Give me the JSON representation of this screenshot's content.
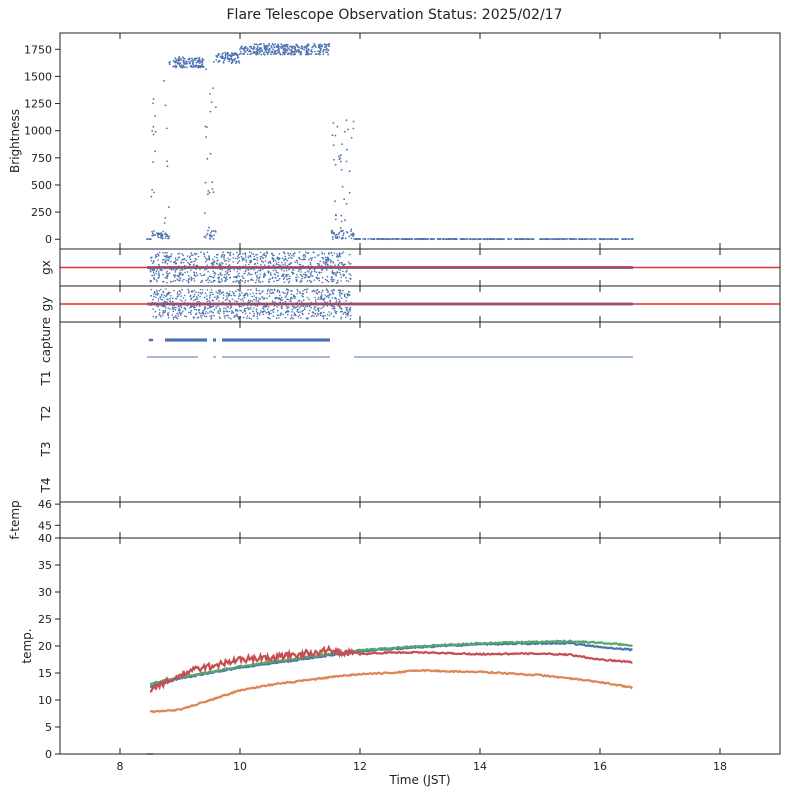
{
  "title": "Flare Telescope Observation Status: 2025/02/17",
  "colors": {
    "blue": "#4c72b0",
    "orange": "#dd8452",
    "green": "#55a868",
    "red": "#c44e52",
    "line_red": "#e03030"
  },
  "chart_data": [
    {
      "panel": "brightness",
      "type": "scatter",
      "ylabel": "Brightness",
      "ylim": [
        -90,
        1900
      ],
      "yticks": [
        0,
        250,
        500,
        750,
        1000,
        1250,
        1500,
        1750
      ],
      "segments": [
        {
          "x0": 8.45,
          "x1": 8.52,
          "y": 0
        },
        {
          "x0": 8.52,
          "x1": 8.62,
          "ymin": 0,
          "ymax": 1300
        },
        {
          "x0": 8.62,
          "x1": 8.72,
          "ymin": 0,
          "ymax": 60
        },
        {
          "x0": 8.72,
          "x1": 8.82,
          "ymin": 0,
          "ymax": 1600
        },
        {
          "x0": 8.82,
          "x1": 9.4,
          "ymin": 1580,
          "ymax": 1680
        },
        {
          "x0": 9.4,
          "x1": 9.6,
          "ymin": 0,
          "ymax": 1650
        },
        {
          "x0": 9.6,
          "x1": 10.0,
          "ymin": 1620,
          "ymax": 1720
        },
        {
          "x0": 10.0,
          "x1": 11.5,
          "ymin": 1700,
          "ymax": 1800
        },
        {
          "x0": 11.5,
          "x1": 11.9,
          "ymin": 0,
          "ymax": 1100
        },
        {
          "x0": 11.9,
          "x1": 16.55,
          "y": 0
        }
      ]
    },
    {
      "panel": "gx",
      "type": "scatter",
      "ylabel": "gx",
      "x_range": [
        8.45,
        16.55
      ],
      "noisy_range": [
        8.5,
        11.85
      ],
      "red_line": true
    },
    {
      "panel": "gy",
      "type": "scatter",
      "ylabel": "gy",
      "x_range": [
        8.45,
        16.55
      ],
      "noisy_range": [
        8.5,
        11.85
      ],
      "red_line": true
    },
    {
      "panel": "status",
      "type": "scatter",
      "row_labels": [
        "capture",
        "T1",
        "T2",
        "T3",
        "T4"
      ],
      "capture_points": [
        8.5,
        8.53
      ],
      "capture_bars": [
        [
          8.75,
          9.45
        ],
        [
          9.55,
          9.6
        ],
        [
          9.7,
          11.5
        ]
      ],
      "t1_line": [
        8.45,
        16.55
      ],
      "t1_gaps": [
        [
          9.3,
          9.55
        ],
        [
          9.6,
          9.7
        ],
        [
          11.5,
          11.9
        ]
      ]
    },
    {
      "panel": "ftemp",
      "type": "scatter",
      "ylabel": "f-temp",
      "yticks": [
        45,
        46
      ],
      "ylim": [
        44.4,
        46.1
      ]
    },
    {
      "panel": "temp",
      "type": "line",
      "xlabel": "Time (JST)",
      "ylabel": "temp.",
      "xlim": [
        7,
        19
      ],
      "xticks": [
        8,
        10,
        12,
        14,
        16,
        18
      ],
      "ylim": [
        0,
        40
      ],
      "yticks": [
        0,
        5,
        10,
        15,
        20,
        25,
        30,
        35,
        40
      ],
      "series": [
        {
          "color": "#4c72b0",
          "x": [
            8.5,
            9,
            10,
            11,
            12,
            13,
            14,
            15,
            15.5,
            16,
            16.55
          ],
          "y": [
            12.5,
            14,
            16,
            17.5,
            19,
            19.8,
            20.3,
            20.5,
            20.5,
            19.8,
            19.3
          ]
        },
        {
          "color": "#55a868",
          "x": [
            8.5,
            9,
            10,
            11,
            12,
            13,
            14,
            15,
            15.5,
            16,
            16.55
          ],
          "y": [
            13,
            14.2,
            16.2,
            17.8,
            19.2,
            20,
            20.5,
            20.8,
            20.9,
            20.6,
            20.1
          ]
        },
        {
          "color": "#c44e52",
          "x": [
            8.5,
            8.8,
            9.2,
            9.6,
            10,
            10.5,
            11,
            11.5,
            12,
            12.5,
            13,
            14,
            15,
            15.5,
            16,
            16.55
          ],
          "y": [
            12,
            13.5,
            15.5,
            16.5,
            17.5,
            17.8,
            18.5,
            19.2,
            18.5,
            18.8,
            18.8,
            18.5,
            18.6,
            18.4,
            17.5,
            17
          ]
        },
        {
          "color": "#dd8452",
          "x": [
            8.5,
            9,
            9.5,
            10,
            10.5,
            11,
            11.5,
            12,
            12.5,
            13,
            13.5,
            14,
            15,
            15.5,
            16,
            16.55
          ],
          "y": [
            7.8,
            8.2,
            10,
            11.8,
            12.8,
            13.5,
            14.2,
            14.8,
            15,
            15.5,
            15.3,
            15.2,
            14.6,
            14,
            13.3,
            12.3
          ]
        }
      ],
      "spike": {
        "x": 8.45,
        "y": 0
      }
    }
  ]
}
